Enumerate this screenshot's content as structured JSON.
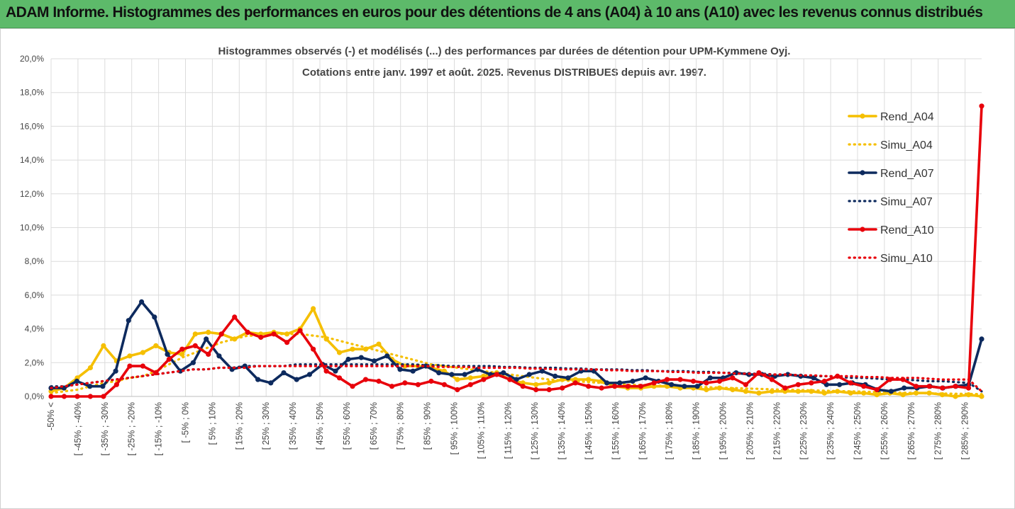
{
  "header": {
    "title": "ADAM Informe. Histogrammes des performances en euros pour des détentions de 4 ans (A04) à 10 ans (A10) avec les revenus connus distribués"
  },
  "chart_data": {
    "type": "line",
    "title": "Histogrammes observés (-) et modélisés (...) des performances par durées de détention pour UPM-Kymmene Oyj.",
    "subtitle": "Cotations entre janv. 1997 et août. 2025. Revenus DISTRIBUES depuis avr. 1997.",
    "ylim": [
      0,
      20
    ],
    "yticks": [
      "0,0%",
      "2,0%",
      "4,0%",
      "6,0%",
      "8,0%",
      "10,0%",
      "12,0%",
      "14,0%",
      "16,0%",
      "18,0%",
      "20,0%"
    ],
    "xtick_labels": [
      "-50% <",
      "[ -45% ; -40%",
      "[ -35% ; -30%",
      "[ -25% ; -20%",
      "[ -15% ; -10%",
      "[ -5% ; 0%",
      "[ 5% ; 10%",
      "[ 15% ; 20%",
      "[ 25% ; 30%",
      "[ 35% ; 40%",
      "[ 45% ; 50%",
      "[ 55% ; 60%",
      "[ 65% ; 70%",
      "[ 75% ; 80%",
      "[ 85% ; 90%",
      "[ 95% ; 100%",
      "[ 105% ; 110%",
      "[ 115% ; 120%",
      "[ 125% ; 130%",
      "[ 135% ; 140%",
      "[ 145% ; 150%",
      "[ 155% ; 160%",
      "[ 165% ; 170%",
      "[ 175% ; 180%",
      "[ 185% ; 190%",
      "[ 195% ; 200%",
      "[ 205% ; 210%",
      "[ 215% ; 220%",
      "[ 225% ; 230%",
      "[ 235% ; 240%",
      "[ 245% ; 250%",
      "[ 255% ; 260%",
      "[ 265% ; 270%",
      "[ 275% ; 280%",
      "[ 285% ; 290%"
    ],
    "legend_position": "top-right",
    "series": [
      {
        "name": "Rend_A04",
        "style": "solid",
        "color": "#f5bf00",
        "values": [
          0.3,
          0.5,
          1.1,
          1.7,
          3.0,
          2.1,
          2.4,
          2.6,
          3.0,
          2.6,
          2.5,
          3.7,
          3.8,
          3.7,
          3.4,
          3.8,
          3.7,
          3.8,
          3.7,
          4.0,
          5.2,
          3.4,
          2.6,
          2.8,
          2.8,
          3.1,
          2.2,
          1.8,
          1.8,
          1.7,
          1.5,
          1.0,
          1.1,
          1.2,
          1.4,
          1.0,
          0.8,
          0.7,
          0.8,
          1.0,
          1.0,
          1.0,
          0.9,
          0.6,
          0.5,
          0.5,
          0.6,
          0.6,
          0.5,
          0.5,
          0.4,
          0.5,
          0.4,
          0.3,
          0.2,
          0.3,
          0.3,
          0.3,
          0.3,
          0.2,
          0.3,
          0.2,
          0.2,
          0.1,
          0.2,
          0.1,
          0.2,
          0.2,
          0.1,
          0.0,
          0.1,
          0.0
        ]
      },
      {
        "name": "Simu_A04",
        "style": "dotted",
        "color": "#f5bf00",
        "values": [
          0.2,
          0.3,
          0.4,
          0.6,
          0.8,
          0.9,
          1.1,
          1.2,
          1.5,
          1.9,
          2.3,
          2.6,
          2.9,
          3.2,
          3.4,
          3.6,
          3.6,
          3.7,
          3.7,
          3.7,
          3.6,
          3.5,
          3.3,
          3.1,
          2.9,
          2.7,
          2.5,
          2.3,
          2.1,
          1.9,
          1.8,
          1.7,
          1.6,
          1.5,
          1.4,
          1.3,
          1.2,
          1.1,
          1.0,
          0.95,
          0.9,
          0.85,
          0.8,
          0.75,
          0.7,
          0.68,
          0.65,
          0.62,
          0.6,
          0.57,
          0.55,
          0.52,
          0.5,
          0.47,
          0.45,
          0.42,
          0.4,
          0.38,
          0.36,
          0.34,
          0.32,
          0.3,
          0.28,
          0.26,
          0.24,
          0.22,
          0.2,
          0.18,
          0.17,
          0.16,
          0.15,
          0.14
        ]
      },
      {
        "name": "Rend_A07",
        "style": "solid",
        "color": "#0d2a5e",
        "values": [
          0.5,
          0.5,
          0.9,
          0.6,
          0.6,
          1.5,
          4.5,
          5.6,
          4.7,
          2.5,
          1.5,
          2.0,
          3.4,
          2.4,
          1.6,
          1.8,
          1.0,
          0.8,
          1.4,
          1.0,
          1.3,
          1.9,
          1.5,
          2.2,
          2.3,
          2.1,
          2.4,
          1.6,
          1.5,
          1.8,
          1.4,
          1.3,
          1.3,
          1.6,
          1.3,
          1.4,
          1.0,
          1.3,
          1.5,
          1.2,
          1.1,
          1.5,
          1.5,
          0.8,
          0.8,
          0.9,
          1.1,
          0.9,
          0.7,
          0.6,
          0.6,
          1.1,
          1.1,
          1.4,
          1.3,
          1.3,
          1.2,
          1.3,
          1.2,
          1.1,
          0.7,
          0.7,
          0.8,
          0.7,
          0.4,
          0.3,
          0.5,
          0.5,
          0.6,
          0.5,
          0.6,
          0.7,
          3.4
        ]
      },
      {
        "name": "Simu_A07",
        "style": "dotted",
        "color": "#0d2a5e",
        "values": [
          0.6,
          0.6,
          0.7,
          0.8,
          0.9,
          1.0,
          1.1,
          1.2,
          1.3,
          1.4,
          1.5,
          1.6,
          1.6,
          1.7,
          1.7,
          1.8,
          1.8,
          1.8,
          1.8,
          1.9,
          1.9,
          1.9,
          1.9,
          1.9,
          1.9,
          1.9,
          1.9,
          1.9,
          1.9,
          1.85,
          1.85,
          1.8,
          1.8,
          1.8,
          1.8,
          1.75,
          1.75,
          1.7,
          1.7,
          1.7,
          1.65,
          1.65,
          1.6,
          1.6,
          1.6,
          1.55,
          1.55,
          1.5,
          1.5,
          1.5,
          1.45,
          1.45,
          1.4,
          1.4,
          1.35,
          1.35,
          1.3,
          1.3,
          1.25,
          1.2,
          1.2,
          1.15,
          1.1,
          1.1,
          1.05,
          1.0,
          1.0,
          0.95,
          0.9,
          0.9,
          0.85,
          0.8,
          0.3
        ]
      },
      {
        "name": "Rend_A10",
        "style": "solid",
        "color": "#e8000b",
        "values": [
          0.0,
          0.0,
          0.0,
          0.0,
          0.0,
          0.7,
          1.8,
          1.8,
          1.4,
          2.2,
          2.8,
          3.0,
          2.5,
          3.7,
          4.7,
          3.8,
          3.5,
          3.7,
          3.2,
          3.9,
          2.8,
          1.5,
          1.1,
          0.6,
          1.0,
          0.9,
          0.6,
          0.8,
          0.7,
          0.9,
          0.7,
          0.4,
          0.7,
          1.0,
          1.3,
          1.0,
          0.6,
          0.4,
          0.4,
          0.5,
          0.8,
          0.6,
          0.5,
          0.6,
          0.6,
          0.6,
          0.8,
          1.0,
          1.0,
          0.9,
          0.8,
          0.9,
          1.1,
          0.7,
          1.4,
          1.0,
          0.5,
          0.7,
          0.8,
          0.9,
          1.2,
          0.8,
          0.6,
          0.4,
          1.0,
          1.0,
          0.6,
          0.6,
          0.5,
          0.6,
          0.5,
          17.2
        ]
      },
      {
        "name": "Simu_A10",
        "style": "dotted",
        "color": "#e8000b",
        "values": [
          0.5,
          0.6,
          0.7,
          0.8,
          0.9,
          1.0,
          1.1,
          1.2,
          1.3,
          1.4,
          1.5,
          1.6,
          1.6,
          1.7,
          1.7,
          1.7,
          1.8,
          1.8,
          1.8,
          1.8,
          1.8,
          1.8,
          1.8,
          1.8,
          1.8,
          1.8,
          1.8,
          1.8,
          1.8,
          1.8,
          1.75,
          1.75,
          1.75,
          1.7,
          1.7,
          1.7,
          1.7,
          1.65,
          1.65,
          1.6,
          1.6,
          1.6,
          1.6,
          1.55,
          1.55,
          1.5,
          1.5,
          1.5,
          1.45,
          1.45,
          1.4,
          1.4,
          1.4,
          1.35,
          1.35,
          1.3,
          1.3,
          1.3,
          1.25,
          1.25,
          1.2,
          1.2,
          1.2,
          1.15,
          1.15,
          1.1,
          1.1,
          1.1,
          1.05,
          1.0,
          1.0,
          1.0,
          0.3
        ]
      }
    ]
  }
}
